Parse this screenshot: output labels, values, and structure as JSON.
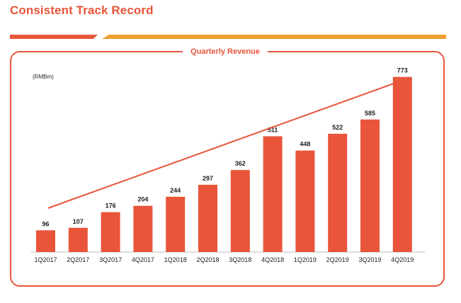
{
  "page": {
    "title": "Consistent Track Record"
  },
  "colors": {
    "accent": "#e8553a",
    "secondary": "#f0a030",
    "bar": "#e8553a",
    "text": "#222222"
  },
  "chart_data": {
    "type": "bar",
    "title": "Quarterly Revenue",
    "unit_label": "(RMBm)",
    "categories": [
      "1Q2017",
      "2Q2017",
      "3Q2017",
      "4Q2017",
      "1Q2018",
      "2Q2018",
      "3Q2018",
      "4Q2018",
      "1Q2019",
      "2Q2019",
      "3Q2019",
      "4Q2019"
    ],
    "values": [
      96,
      107,
      176,
      204,
      244,
      297,
      362,
      511,
      448,
      522,
      585,
      773
    ],
    "ylim": [
      0,
      800
    ],
    "grid": false,
    "legend": "none",
    "annotation": "upward-trend-arrow"
  }
}
